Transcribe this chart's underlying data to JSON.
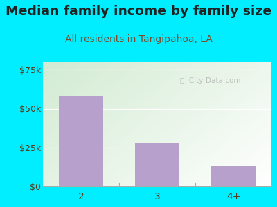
{
  "title": "Median family income by family size",
  "subtitle": "All residents in Tangipahoa, LA",
  "categories": [
    "2",
    "3",
    "4+"
  ],
  "values": [
    58000,
    28000,
    13000
  ],
  "bar_color": "#b8a0cc",
  "background_color": "#00eeff",
  "title_color": "#222222",
  "subtitle_color": "#7a4a2a",
  "axis_label_color": "#5a3a1a",
  "yticks": [
    0,
    25000,
    50000,
    75000
  ],
  "ytick_labels": [
    "$0",
    "$25k",
    "$50k",
    "$75k"
  ],
  "ylim": [
    0,
    80000
  ],
  "title_fontsize": 13.5,
  "subtitle_fontsize": 10,
  "tick_fontsize": 9,
  "watermark": "City-Data.com"
}
